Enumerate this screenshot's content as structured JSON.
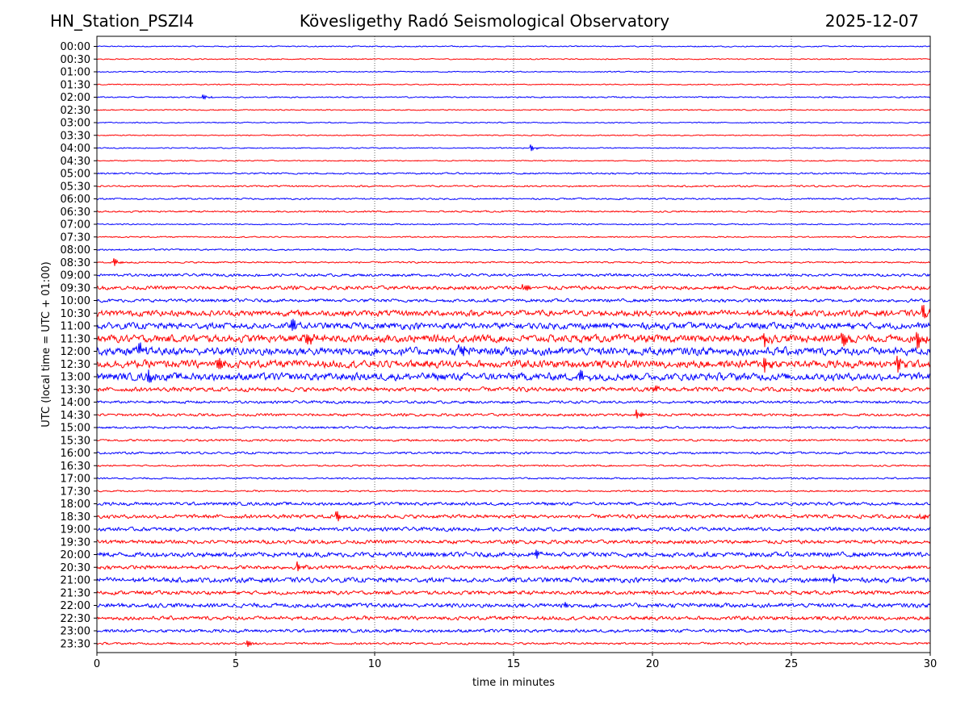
{
  "header": {
    "station": "HN_Station_PSZI4",
    "observatory": "Kövesligethy Radó Seismological Observatory",
    "date": "2025-12-07"
  },
  "chart_data": {
    "type": "line",
    "title": "Kövesligethy Radó Seismological Observatory",
    "xlabel": "time in minutes",
    "ylabel": "UTC (local time = UTC + 01:00)",
    "xlim": [
      0,
      30
    ],
    "xticks": [
      0,
      5,
      10,
      15,
      20,
      25,
      30
    ],
    "grid": "vertical dotted at x ticks",
    "colors": [
      "#0000ff",
      "#ff0000"
    ],
    "rows": [
      "00:00",
      "00:30",
      "01:00",
      "01:30",
      "02:00",
      "02:30",
      "03:00",
      "03:30",
      "04:00",
      "04:30",
      "05:00",
      "05:30",
      "06:00",
      "06:30",
      "07:00",
      "07:30",
      "08:00",
      "08:30",
      "09:00",
      "09:30",
      "10:00",
      "10:30",
      "11:00",
      "11:30",
      "12:00",
      "12:30",
      "13:00",
      "13:30",
      "14:00",
      "14:30",
      "15:00",
      "15:30",
      "16:00",
      "16:30",
      "17:00",
      "17:30",
      "18:00",
      "18:30",
      "19:00",
      "19:30",
      "20:00",
      "20:30",
      "21:00",
      "21:30",
      "22:00",
      "22:30",
      "23:00",
      "23:30"
    ],
    "noise_level": [
      0.1,
      0.1,
      0.1,
      0.1,
      0.12,
      0.1,
      0.1,
      0.1,
      0.1,
      0.1,
      0.15,
      0.15,
      0.15,
      0.15,
      0.12,
      0.12,
      0.15,
      0.15,
      0.25,
      0.35,
      0.3,
      0.55,
      0.6,
      0.7,
      0.75,
      0.7,
      0.7,
      0.4,
      0.25,
      0.25,
      0.2,
      0.2,
      0.2,
      0.15,
      0.15,
      0.15,
      0.3,
      0.35,
      0.35,
      0.35,
      0.45,
      0.35,
      0.45,
      0.35,
      0.4,
      0.35,
      0.3,
      0.2
    ],
    "events": [
      {
        "row": "02:00",
        "t": 3.8,
        "amp": 0.5
      },
      {
        "row": "04:00",
        "t": 15.6,
        "amp": 0.6
      },
      {
        "row": "08:30",
        "t": 0.6,
        "amp": 0.8
      },
      {
        "row": "09:30",
        "t": 15.3,
        "amp": 1.0
      },
      {
        "row": "10:30",
        "t": 29.7,
        "amp": 1.4
      },
      {
        "row": "11:00",
        "t": 7.0,
        "amp": 1.2
      },
      {
        "row": "11:30",
        "t": 7.5,
        "amp": 2.0
      },
      {
        "row": "11:30",
        "t": 24.0,
        "amp": 1.6
      },
      {
        "row": "11:30",
        "t": 26.8,
        "amp": 2.0
      },
      {
        "row": "11:30",
        "t": 29.5,
        "amp": 2.0
      },
      {
        "row": "12:00",
        "t": 1.4,
        "amp": 2.2
      },
      {
        "row": "12:00",
        "t": 13.0,
        "amp": 2.0
      },
      {
        "row": "12:30",
        "t": 4.3,
        "amp": 1.6
      },
      {
        "row": "12:30",
        "t": 24.0,
        "amp": 1.4
      },
      {
        "row": "12:30",
        "t": 28.8,
        "amp": 1.5
      },
      {
        "row": "13:00",
        "t": 1.8,
        "amp": 1.6
      },
      {
        "row": "13:00",
        "t": 17.3,
        "amp": 1.8
      },
      {
        "row": "13:30",
        "t": 20.0,
        "amp": 0.8
      },
      {
        "row": "14:30",
        "t": 19.4,
        "amp": 1.2
      },
      {
        "row": "18:30",
        "t": 8.6,
        "amp": 1.2
      },
      {
        "row": "18:30",
        "t": 29.6,
        "amp": 1.0
      },
      {
        "row": "20:00",
        "t": 15.8,
        "amp": 0.8
      },
      {
        "row": "20:30",
        "t": 7.2,
        "amp": 0.8
      },
      {
        "row": "21:00",
        "t": 26.5,
        "amp": 0.9
      },
      {
        "row": "22:00",
        "t": 16.8,
        "amp": 0.6
      },
      {
        "row": "23:30",
        "t": 5.4,
        "amp": 0.7
      }
    ]
  }
}
